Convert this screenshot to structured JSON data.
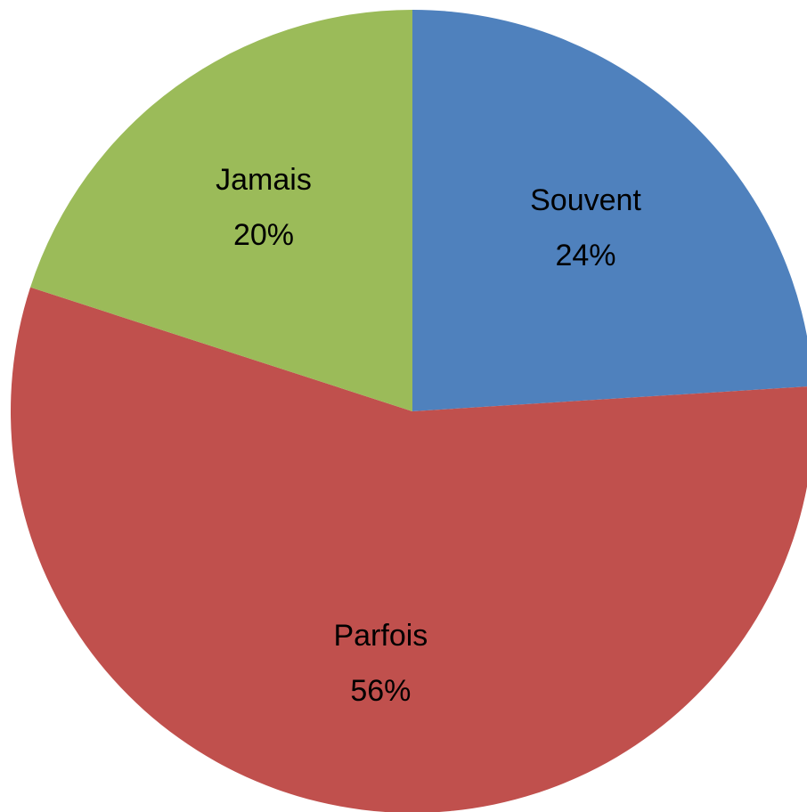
{
  "chart_data": {
    "type": "pie",
    "title": "",
    "legend": "none",
    "slices": [
      {
        "label": "Souvent",
        "value": 24,
        "display": "24%",
        "color": "#4F81BD"
      },
      {
        "label": "Parfois",
        "value": 56,
        "display": "56%",
        "color": "#C0504D"
      },
      {
        "label": "Jamais",
        "value": 20,
        "display": "20%",
        "color": "#9BBB59"
      }
    ]
  }
}
